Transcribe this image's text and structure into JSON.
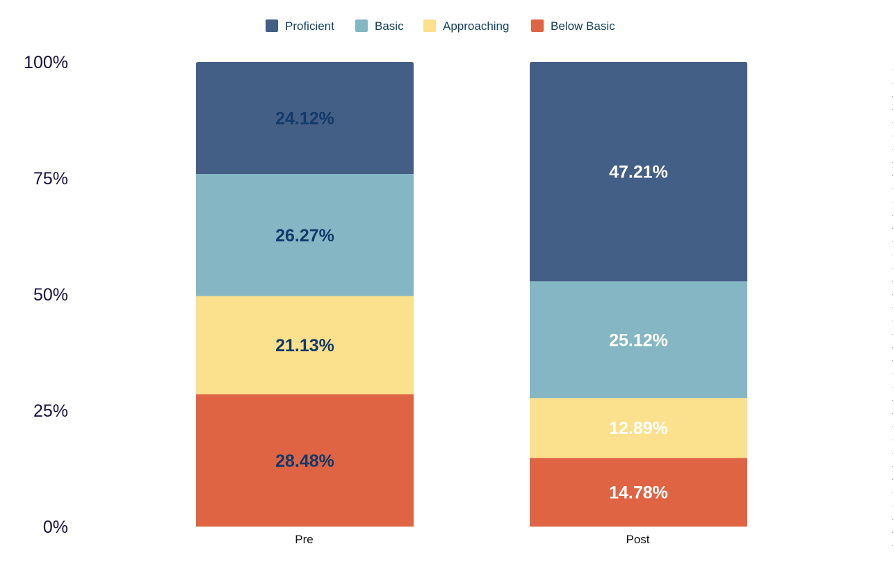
{
  "chart_data": {
    "type": "bar",
    "stacked": true,
    "categories": [
      "Pre",
      "Post"
    ],
    "series": [
      {
        "name": "Below Basic",
        "color": "#df6443",
        "values": [
          28.48,
          14.78
        ],
        "labels": [
          "28.48%",
          "14.78%"
        ]
      },
      {
        "name": "Approaching",
        "color": "#fbe08d",
        "values": [
          21.13,
          12.89
        ],
        "labels": [
          "21.13%",
          "12.89%"
        ]
      },
      {
        "name": "Basic",
        "color": "#84b6c4",
        "values": [
          26.27,
          25.12
        ],
        "labels": [
          "26.27%",
          "25.12%"
        ]
      },
      {
        "name": "Proficient",
        "color": "#435f86",
        "values": [
          24.12,
          47.21
        ],
        "labels": [
          "24.12%",
          "47.21%"
        ]
      }
    ],
    "legend_order": [
      "Proficient",
      "Basic",
      "Approaching",
      "Below Basic"
    ],
    "legend_position": "top-center",
    "yticks": [
      {
        "value": 0,
        "label": "0%"
      },
      {
        "value": 25,
        "label": "25%"
      },
      {
        "value": 50,
        "label": "50%"
      },
      {
        "value": 75,
        "label": "75%"
      },
      {
        "value": 100,
        "label": "100%"
      }
    ],
    "ylim": [
      0,
      100
    ],
    "title": "",
    "xlabel": "",
    "ylabel": "",
    "grid": false
  },
  "colors": {
    "axis_text": "#1a1040",
    "legend_text": "#123f5a",
    "label_dark": "#123a6a",
    "label_light": "#ffffff"
  }
}
